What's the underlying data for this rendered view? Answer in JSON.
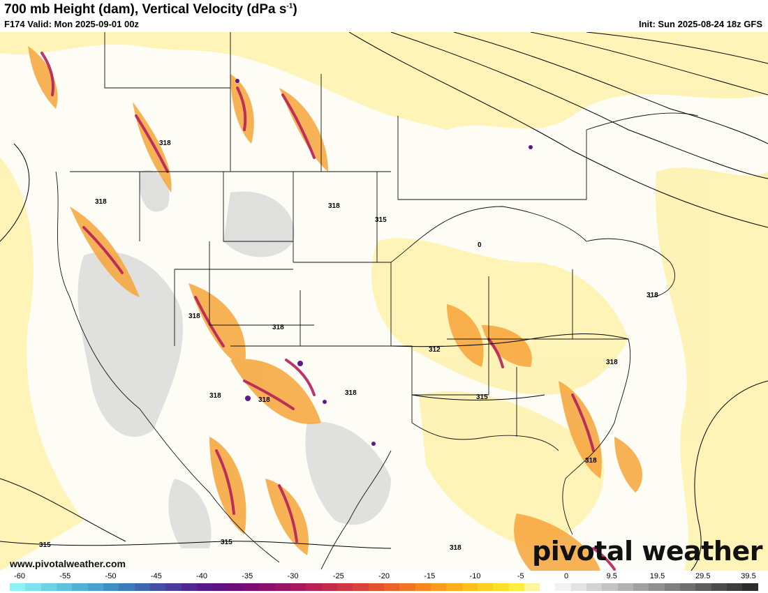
{
  "header": {
    "title_main": "700 mb Height (dam), Vertical Velocity (dPa s",
    "title_sup": "-1",
    "title_end": ")",
    "valid": "F174 Valid: Mon 2025-09-01 00z",
    "init": "Init: Sun 2025-08-24 18z GFS"
  },
  "watermark": "pivotal weather",
  "site": "www.pivotalweather.com",
  "contour_labels": [
    "318",
    "318",
    "318",
    "315",
    "312",
    "315",
    "318",
    "318",
    "318",
    "318",
    "318",
    "318",
    "318",
    "315",
    "315",
    "318",
    "0"
  ],
  "colorbar": {
    "ticks": [
      "-60",
      "-55",
      "-50",
      "-45",
      "-40",
      "-35",
      "-30",
      "-25",
      "-20",
      "-15",
      "-10",
      "-5",
      "0",
      "9.5",
      "19.5",
      "29.5",
      "39.5"
    ],
    "colors": [
      "#8ff1f6",
      "#7ee2f0",
      "#6dd2e8",
      "#5fc2df",
      "#52b2d6",
      "#47a2cc",
      "#3f8fc2",
      "#3d7cb8",
      "#3f67ad",
      "#4451a3",
      "#4a3d99",
      "#50298f",
      "#571a87",
      "#611280",
      "#6d0e7b",
      "#7b0d75",
      "#8a0f6e",
      "#991466",
      "#a81a5d",
      "#b72154",
      "#c42a4a",
      "#d03541",
      "#da4238",
      "#e35230",
      "#eb6329",
      "#f17524",
      "#f6881f",
      "#f99b1c",
      "#fbad1a",
      "#fcbf1c",
      "#fdd021",
      "#fee02a",
      "#ffed40",
      "#fff5a0",
      "#ffffff",
      "#f2f2f2",
      "#e3e3e3",
      "#d3d3d3",
      "#c3c3c3",
      "#b2b2b2",
      "#a1a1a1",
      "#909090",
      "#7f7f7f",
      "#6e6e6e",
      "#5d5d5d",
      "#4c4c4c",
      "#3c3c3c",
      "#2c2c2c"
    ]
  }
}
